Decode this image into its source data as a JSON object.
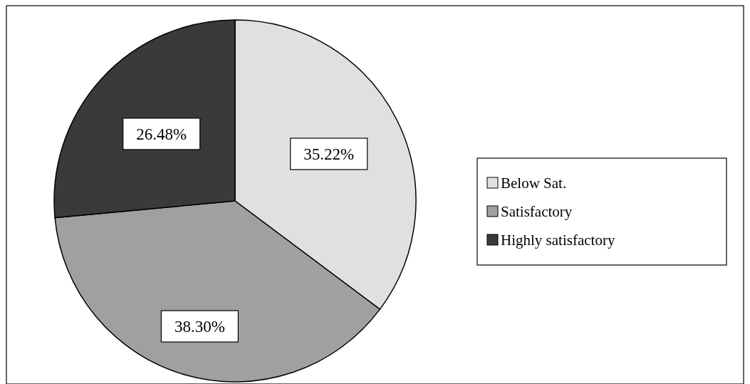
{
  "chart_data": {
    "type": "pie",
    "categories": [
      "Below Sat.",
      "Satisfactory",
      "Highly satisfactory"
    ],
    "values": [
      35.22,
      38.3,
      26.48
    ],
    "value_labels": [
      "35.22%",
      "38.30%",
      "26.48%"
    ],
    "colors": [
      "#e0e0e0",
      "#a0a0a0",
      "#3a3a3a"
    ],
    "legend": "right"
  }
}
